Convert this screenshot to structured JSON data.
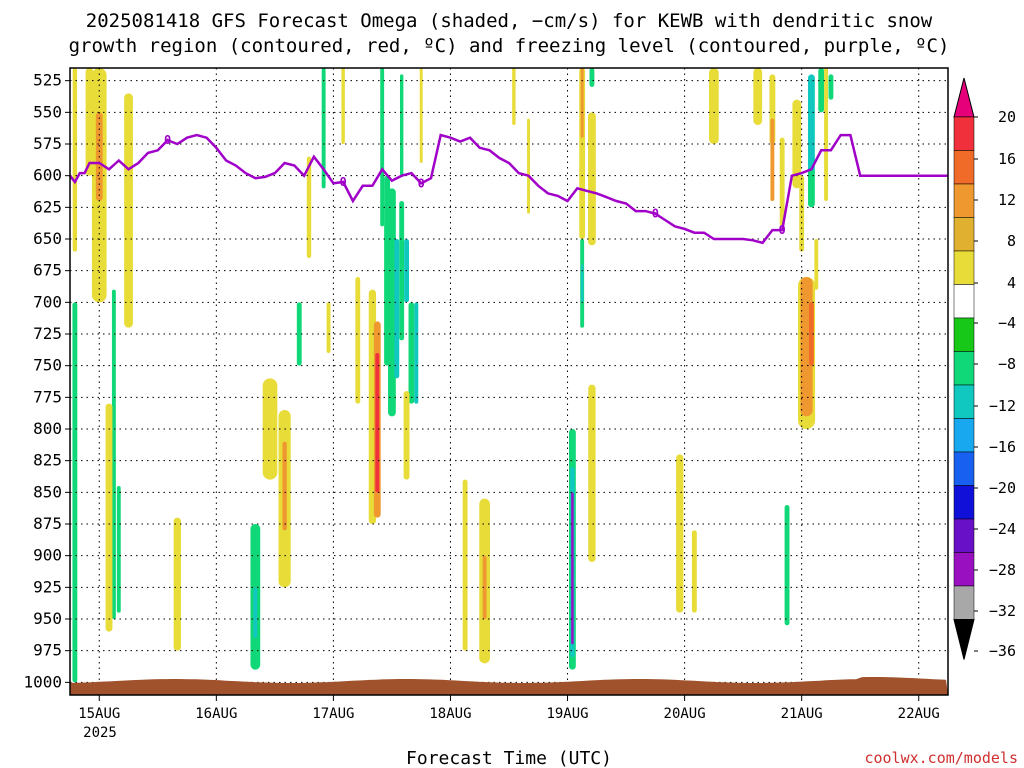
{
  "chart_data": {
    "type": "heatmap",
    "title": "2025081418 GFS Forecast Omega (shaded, −cm/s) for KEWB with dendritic snow",
    "subtitle": "growth region (contoured, red, ºC) and freezing level (contoured, purple, ºC)",
    "xlabel": "Forecast Time (UTC)",
    "ylabel": "",
    "x_ticks": [
      "15AUG",
      "16AUG",
      "17AUG",
      "18AUG",
      "19AUG",
      "20AUG",
      "21AUG",
      "22AUG"
    ],
    "x_year": "2025",
    "x_range_hours": [
      -6,
      174
    ],
    "y_ticks": [
      525,
      550,
      575,
      600,
      625,
      650,
      675,
      700,
      725,
      750,
      775,
      800,
      825,
      850,
      875,
      900,
      925,
      950,
      975,
      1000
    ],
    "y_range_hPa": [
      515,
      1010
    ],
    "grid": true,
    "colorbar": {
      "ticks": [
        20,
        16,
        12,
        8,
        4,
        -4,
        -8,
        -12,
        -16,
        -20,
        -24,
        -28,
        -32,
        -36
      ],
      "colors": [
        "#e6007a",
        "#f0303a",
        "#f06a28",
        "#f09830",
        "#e0b030",
        "#e8dc38",
        "#ffffff",
        "#18c818",
        "#10d878",
        "#10c8c0",
        "#18a8f0",
        "#1860f0",
        "#1010d8",
        "#6810c8",
        "#9810c0",
        "#a8a8a8",
        "#000000"
      ]
    },
    "freezing_level": {
      "label": "0",
      "color": "#a000c8",
      "hours": [
        -6,
        -5,
        -4,
        -3,
        -2,
        0,
        2,
        4,
        6,
        8,
        10,
        12,
        14,
        16,
        18,
        20,
        22,
        24,
        26,
        28,
        30,
        32,
        34,
        36,
        38,
        40,
        42,
        44,
        46,
        48,
        50,
        52,
        54,
        56,
        58,
        60,
        62,
        64,
        66,
        68,
        70,
        72,
        74,
        76,
        78,
        80,
        82,
        84,
        86,
        88,
        90,
        92,
        94,
        96,
        98,
        100,
        102,
        104,
        106,
        108,
        110,
        112,
        114,
        116,
        118,
        120,
        122,
        124,
        126,
        128,
        130,
        132,
        134,
        136,
        138,
        140,
        142,
        144,
        146,
        148,
        150,
        152,
        154,
        156,
        158,
        160,
        162,
        164,
        166,
        168,
        170,
        172,
        174
      ],
      "pressure": [
        600,
        605,
        598,
        598,
        590,
        590,
        595,
        588,
        595,
        590,
        582,
        580,
        572,
        575,
        570,
        568,
        570,
        578,
        588,
        592,
        598,
        602,
        601,
        598,
        590,
        592,
        600,
        585,
        595,
        606,
        605,
        620,
        608,
        608,
        595,
        604,
        600,
        598,
        606,
        602,
        568,
        570,
        573,
        570,
        578,
        580,
        586,
        590,
        598,
        600,
        608,
        614,
        616,
        620,
        610,
        612,
        614,
        617,
        620,
        622,
        628,
        628,
        630,
        635,
        640,
        642,
        645,
        645,
        650,
        650,
        650,
        650,
        651,
        653,
        643,
        643,
        600,
        598,
        595,
        580,
        580,
        568,
        568,
        600,
        600,
        600,
        600,
        600,
        600,
        600,
        600,
        600,
        600
      ]
    },
    "omega_cells": [
      {
        "h": -5,
        "p0": 515,
        "p1": 660,
        "w": 0.9,
        "v": 5
      },
      {
        "h": -5,
        "p0": 700,
        "p1": 1000,
        "w": 1.0,
        "v": -8
      },
      {
        "h": -2,
        "p0": 515,
        "p1": 600,
        "w": 1.6,
        "v": 5
      },
      {
        "h": 0,
        "p0": 515,
        "p1": 700,
        "w": 3,
        "v": 6
      },
      {
        "h": 0,
        "p0": 550,
        "p1": 620,
        "w": 1.4,
        "v": 10
      },
      {
        "h": 3,
        "p0": 690,
        "p1": 950,
        "w": 0.8,
        "v": -8
      },
      {
        "h": 2,
        "p0": 780,
        "p1": 960,
        "w": 1.4,
        "v": 5
      },
      {
        "h": 4,
        "p0": 845,
        "p1": 945,
        "w": 0.8,
        "v": -8
      },
      {
        "h": 6,
        "p0": 535,
        "p1": 720,
        "w": 1.8,
        "v": 5
      },
      {
        "h": 16,
        "p0": 870,
        "p1": 975,
        "w": 1.5,
        "v": 5
      },
      {
        "h": 32,
        "p0": 875,
        "p1": 990,
        "w": 2,
        "v": -8
      },
      {
        "h": 32,
        "p0": 925,
        "p1": 965,
        "w": 0.8,
        "v": -12
      },
      {
        "h": 35,
        "p0": 760,
        "p1": 840,
        "w": 3,
        "v": 5
      },
      {
        "h": 38,
        "p0": 785,
        "p1": 925,
        "w": 2.5,
        "v": 5
      },
      {
        "h": 38,
        "p0": 810,
        "p1": 880,
        "w": 0.9,
        "v": 10
      },
      {
        "h": 41,
        "p0": 700,
        "p1": 750,
        "w": 1.0,
        "v": -8
      },
      {
        "h": 43,
        "p0": 585,
        "p1": 665,
        "w": 0.9,
        "v": 5
      },
      {
        "h": 46,
        "p0": 515,
        "p1": 610,
        "w": 0.8,
        "v": -8
      },
      {
        "h": 47,
        "p0": 700,
        "p1": 740,
        "w": 0.8,
        "v": 5
      },
      {
        "h": 50,
        "p0": 515,
        "p1": 575,
        "w": 0.7,
        "v": 5
      },
      {
        "h": 53,
        "p0": 680,
        "p1": 780,
        "w": 1.0,
        "v": 5
      },
      {
        "h": 56,
        "p0": 690,
        "p1": 875,
        "w": 1.5,
        "v": 5
      },
      {
        "h": 57,
        "p0": 715,
        "p1": 870,
        "w": 1.4,
        "v": 8
      },
      {
        "h": 57,
        "p0": 740,
        "p1": 850,
        "w": 0.8,
        "v": 18
      },
      {
        "h": 58,
        "p0": 515,
        "p1": 640,
        "w": 0.8,
        "v": -8
      },
      {
        "h": 59,
        "p0": 600,
        "p1": 750,
        "w": 1.2,
        "v": -8
      },
      {
        "h": 60,
        "p0": 610,
        "p1": 790,
        "w": 1.6,
        "v": -8
      },
      {
        "h": 61,
        "p0": 650,
        "p1": 760,
        "w": 1.0,
        "v": -12
      },
      {
        "h": 62,
        "p0": 520,
        "p1": 600,
        "w": 0.7,
        "v": -8
      },
      {
        "h": 62,
        "p0": 620,
        "p1": 730,
        "w": 1.0,
        "v": -8
      },
      {
        "h": 63,
        "p0": 650,
        "p1": 700,
        "w": 1.0,
        "v": -12
      },
      {
        "h": 64,
        "p0": 700,
        "p1": 780,
        "w": 1.2,
        "v": -8
      },
      {
        "h": 65,
        "p0": 700,
        "p1": 780,
        "w": 0.8,
        "v": -12
      },
      {
        "h": 66,
        "p0": 515,
        "p1": 590,
        "w": 0.6,
        "v": 5
      },
      {
        "h": 63,
        "p0": 770,
        "p1": 840,
        "w": 1.2,
        "v": 5
      },
      {
        "h": 75,
        "p0": 840,
        "p1": 975,
        "w": 1.0,
        "v": 5
      },
      {
        "h": 79,
        "p0": 855,
        "p1": 985,
        "w": 2.2,
        "v": 5
      },
      {
        "h": 79,
        "p0": 900,
        "p1": 950,
        "w": 0.8,
        "v": 10
      },
      {
        "h": 85,
        "p0": 515,
        "p1": 560,
        "w": 0.7,
        "v": 5
      },
      {
        "h": 88,
        "p0": 555,
        "p1": 630,
        "w": 0.6,
        "v": 5
      },
      {
        "h": 97,
        "p0": 800,
        "p1": 990,
        "w": 1.4,
        "v": -8
      },
      {
        "h": 97,
        "p0": 830,
        "p1": 980,
        "w": 0.9,
        "v": -12
      },
      {
        "h": 97,
        "p0": 850,
        "p1": 970,
        "w": 0.5,
        "v": -28
      },
      {
        "h": 99,
        "p0": 515,
        "p1": 650,
        "w": 1.2,
        "v": 5
      },
      {
        "h": 99,
        "p0": 515,
        "p1": 570,
        "w": 0.6,
        "v": 10
      },
      {
        "h": 101,
        "p0": 515,
        "p1": 530,
        "w": 1.0,
        "v": -8
      },
      {
        "h": 101,
        "p0": 550,
        "p1": 655,
        "w": 1.6,
        "v": 5
      },
      {
        "h": 99,
        "p0": 650,
        "p1": 720,
        "w": 0.8,
        "v": -8
      },
      {
        "h": 99,
        "p0": 670,
        "p1": 700,
        "w": 0.5,
        "v": -12
      },
      {
        "h": 101,
        "p0": 765,
        "p1": 905,
        "w": 1.5,
        "v": 5
      },
      {
        "h": 119,
        "p0": 820,
        "p1": 945,
        "w": 1.5,
        "v": 5
      },
      {
        "h": 122,
        "p0": 880,
        "p1": 945,
        "w": 1.0,
        "v": 5
      },
      {
        "h": 126,
        "p0": 515,
        "p1": 575,
        "w": 2.0,
        "v": 5
      },
      {
        "h": 135,
        "p0": 515,
        "p1": 560,
        "w": 1.8,
        "v": 5
      },
      {
        "h": 138,
        "p0": 520,
        "p1": 575,
        "w": 1.2,
        "v": 5
      },
      {
        "h": 140,
        "p0": 570,
        "p1": 640,
        "w": 1.0,
        "v": 5
      },
      {
        "h": 138,
        "p0": 555,
        "p1": 620,
        "w": 0.8,
        "v": 10
      },
      {
        "h": 141,
        "p0": 860,
        "p1": 955,
        "w": 1.0,
        "v": -8
      },
      {
        "h": 143,
        "p0": 540,
        "p1": 610,
        "w": 1.8,
        "v": 5
      },
      {
        "h": 144,
        "p0": 600,
        "p1": 660,
        "w": 1.0,
        "v": 5
      },
      {
        "h": 146,
        "p0": 520,
        "p1": 600,
        "w": 1.4,
        "v": -12
      },
      {
        "h": 146,
        "p0": 595,
        "p1": 625,
        "w": 1.4,
        "v": -8
      },
      {
        "h": 148,
        "p0": 515,
        "p1": 550,
        "w": 1.2,
        "v": -8
      },
      {
        "h": 149,
        "p0": 515,
        "p1": 620,
        "w": 0.8,
        "v": 5
      },
      {
        "h": 150,
        "p0": 520,
        "p1": 540,
        "w": 1.0,
        "v": -8
      },
      {
        "h": 145,
        "p0": 680,
        "p1": 800,
        "w": 3.5,
        "v": 5
      },
      {
        "h": 145,
        "p0": 680,
        "p1": 790,
        "w": 2.5,
        "v": 8
      },
      {
        "h": 146,
        "p0": 700,
        "p1": 750,
        "w": 1.0,
        "v": 12
      },
      {
        "h": 147,
        "p0": 650,
        "p1": 690,
        "w": 0.8,
        "v": 5
      }
    ]
  },
  "colorbar_ticks_text": [
    "20",
    "16",
    "12",
    "8",
    "4",
    "−4",
    "−8",
    "−12",
    "−16",
    "−20",
    "−24",
    "−28",
    "−32",
    "−36"
  ],
  "credit": "coolwx.com/models"
}
